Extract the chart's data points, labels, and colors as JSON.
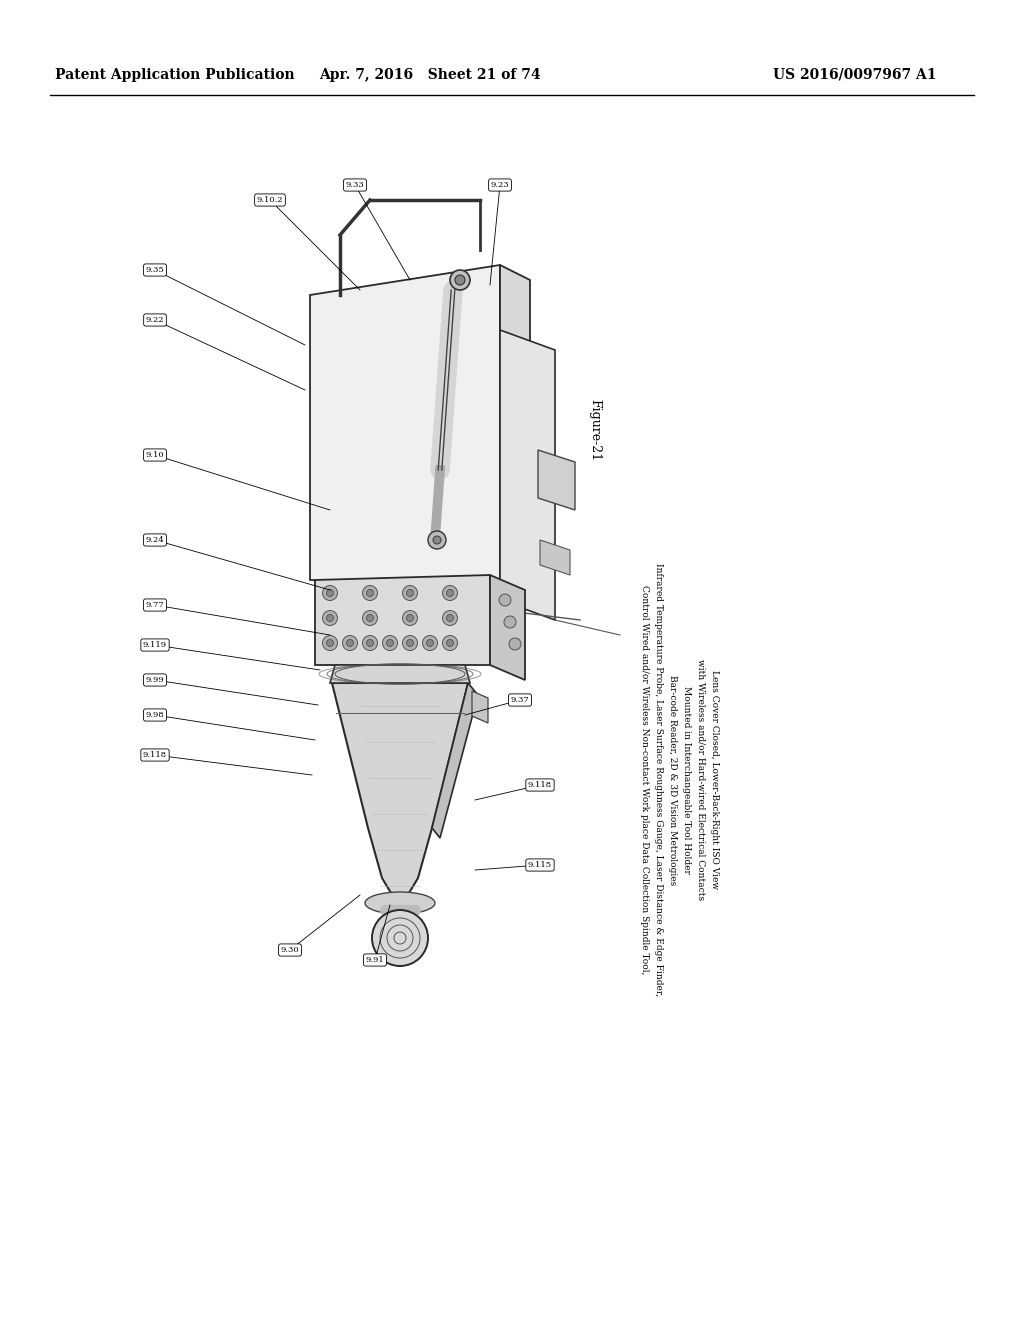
{
  "background_color": "#ffffff",
  "header_left": "Patent Application Publication",
  "header_center": "Apr. 7, 2016   Sheet 21 of 74",
  "header_right": "US 2016/0097967 A1",
  "figure_label": "Figure-21",
  "desc_rotated": [
    "Control Wired and/or Wireless Non-contact Work place Data Collection Spindle Tool",
    "Probe, Laser Surface Roughness Gauge, Laser Distance & Edge Fi...",
    "& 3D Vision Metrologies",
    "...geable Tool Holder",
    "...charger Module and Electrical Contacts",
    "Lower-Back-Right ISO View"
  ],
  "refs_left": [
    [
      "9.35",
      155,
      270,
      305,
      345
    ],
    [
      "9.22",
      155,
      320,
      305,
      390
    ],
    [
      "9.10",
      155,
      455,
      330,
      510
    ],
    [
      "9.24",
      155,
      540,
      330,
      590
    ],
    [
      "9.77",
      155,
      605,
      330,
      635
    ],
    [
      "9.119",
      155,
      645,
      320,
      670
    ],
    [
      "9.99",
      155,
      680,
      318,
      705
    ],
    [
      "9.98",
      155,
      715,
      315,
      740
    ],
    [
      "9.118",
      155,
      755,
      312,
      775
    ]
  ],
  "refs_top": [
    [
      "9.10.2",
      270,
      200,
      360,
      290
    ],
    [
      "9.33",
      355,
      185,
      410,
      280
    ],
    [
      "9.23",
      500,
      185,
      490,
      285
    ]
  ],
  "refs_right": [
    [
      "9.37",
      520,
      700,
      465,
      715
    ],
    [
      "9.118",
      540,
      785,
      475,
      800
    ],
    [
      "9.115",
      540,
      865,
      475,
      870
    ]
  ],
  "refs_bottom": [
    [
      "9.30",
      290,
      950,
      360,
      895
    ],
    [
      "9.91",
      375,
      960,
      390,
      905
    ]
  ]
}
